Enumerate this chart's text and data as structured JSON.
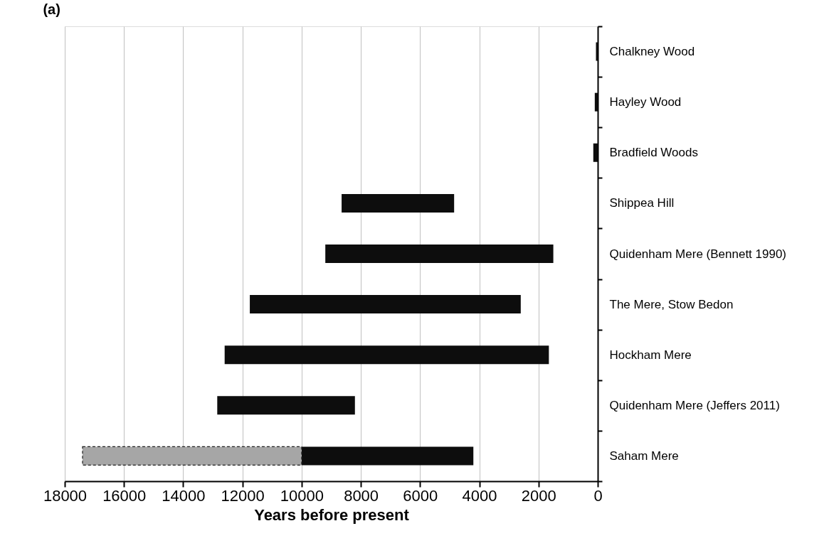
{
  "chart_data": {
    "type": "bar",
    "orientation": "horizontal",
    "title": "(a)",
    "xlabel": "Years before present",
    "categories": [
      "Chalkney Wood",
      "Hayley Wood",
      "Bradfield Woods",
      "Shippea Hill",
      "Quidenham Mere (Bennett 1990)",
      "The Mere, Stow Bedon",
      "Hockham Mere",
      "Quidenham Mere (Jeffers 2011)",
      "Saham Mere"
    ],
    "series": [
      {
        "color": "#0d0d0d",
        "base": [
          0,
          0,
          0,
          4850,
          1500,
          2600,
          1650,
          8200,
          4200
        ],
        "values": [
          60,
          100,
          150,
          3800,
          7700,
          9150,
          10950,
          4650,
          5800
        ]
      },
      {
        "color": "#a6a6a6",
        "line_style": "dashed",
        "base": [
          null,
          null,
          null,
          null,
          null,
          null,
          null,
          null,
          10000
        ],
        "values": [
          null,
          null,
          null,
          null,
          null,
          null,
          null,
          null,
          7400
        ]
      }
    ],
    "xlim": [
      18000,
      0
    ],
    "xticks": [
      18000,
      16000,
      14000,
      12000,
      10000,
      8000,
      6000,
      4000,
      2000,
      0
    ],
    "grid": "x"
  }
}
